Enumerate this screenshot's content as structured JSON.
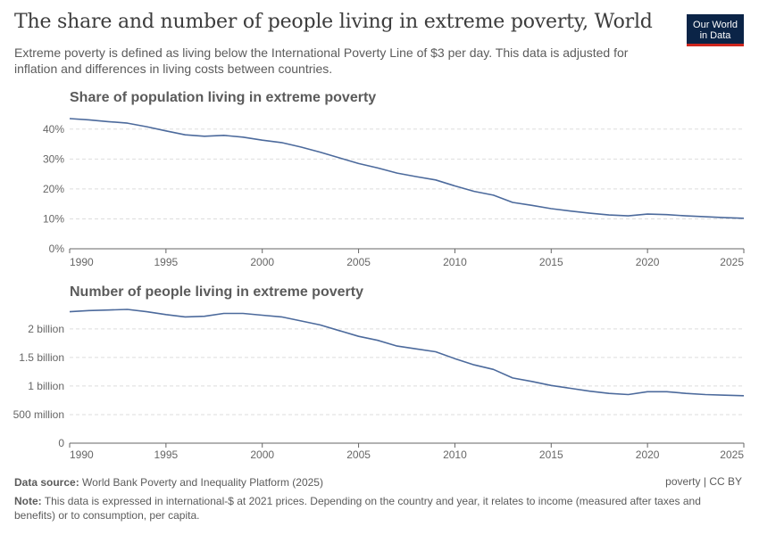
{
  "header": {
    "title": "The share and number of people living in extreme poverty, World",
    "subtitle": "Extreme poverty is defined as living below the International Poverty Line of $3 per day. This data is adjusted for inflation and differences in living costs between countries.",
    "logo_line1": "Our World",
    "logo_line2": "in Data"
  },
  "footer": {
    "source_label": "Data source:",
    "source_text": "World Bank Poverty and Inequality Platform (2025)",
    "note_label": "Note:",
    "note_text": "This data is expressed in international-$ at 2021 prices. Depending on the country and year, it relates to income (measured after taxes and benefits) or to consumption, per capita.",
    "topic_link": "poverty",
    "separator": "|",
    "license_link": "CC BY"
  },
  "colors": {
    "line": "#4c6a9c",
    "grid": "#dddddd",
    "axis": "#666666",
    "text": "#666666",
    "heading": "#5b5b5b"
  },
  "chart_data": [
    {
      "type": "line",
      "title": "Share of population living in extreme poverty",
      "ylim": [
        0,
        45
      ],
      "y_ticks": [
        0,
        10,
        20,
        30,
        40
      ],
      "y_tick_labels": [
        "0%",
        "10%",
        "20%",
        "30%",
        "40%"
      ],
      "x_ticks": [
        1990,
        1995,
        2000,
        2005,
        2010,
        2015,
        2020,
        2025
      ],
      "x_tick_labels": [
        "1990",
        "1995",
        "2000",
        "2005",
        "2010",
        "2015",
        "2020",
        "2025"
      ],
      "xlim": [
        1990,
        2025
      ],
      "grid": true,
      "x": [
        1990,
        1991,
        1992,
        1993,
        1994,
        1995,
        1996,
        1997,
        1998,
        1999,
        2000,
        2001,
        2002,
        2003,
        2004,
        2005,
        2006,
        2007,
        2008,
        2009,
        2010,
        2011,
        2012,
        2013,
        2014,
        2015,
        2016,
        2017,
        2018,
        2019,
        2020,
        2021,
        2022,
        2023,
        2024,
        2025
      ],
      "y": [
        43.5,
        43.1,
        42.5,
        42.0,
        40.8,
        39.4,
        38.1,
        37.6,
        37.9,
        37.3,
        36.3,
        35.5,
        34.0,
        32.3,
        30.4,
        28.5,
        27.0,
        25.3,
        24.1,
        23.0,
        21.0,
        19.2,
        17.9,
        15.5,
        14.5,
        13.4,
        12.6,
        11.9,
        11.3,
        11.0,
        11.6,
        11.4,
        11.0,
        10.7,
        10.4,
        10.2
      ]
    },
    {
      "type": "line",
      "title": "Number of people living in extreme poverty",
      "ylim": [
        0,
        2.45
      ],
      "y_ticks": [
        0,
        0.5,
        1,
        1.5,
        2
      ],
      "y_tick_labels": [
        "0",
        "500 million",
        "1 billion",
        "1.5 billion",
        "2 billion"
      ],
      "x_ticks": [
        1990,
        1995,
        2000,
        2005,
        2010,
        2015,
        2020,
        2025
      ],
      "x_tick_labels": [
        "1990",
        "1995",
        "2000",
        "2005",
        "2010",
        "2015",
        "2020",
        "2025"
      ],
      "xlim": [
        1990,
        2025
      ],
      "grid": true,
      "x": [
        1990,
        1991,
        1992,
        1993,
        1994,
        1995,
        1996,
        1997,
        1998,
        1999,
        2000,
        2001,
        2002,
        2003,
        2004,
        2005,
        2006,
        2007,
        2008,
        2009,
        2010,
        2011,
        2012,
        2013,
        2014,
        2015,
        2016,
        2017,
        2018,
        2019,
        2020,
        2021,
        2022,
        2023,
        2024,
        2025
      ],
      "y": [
        2.3,
        2.32,
        2.33,
        2.34,
        2.3,
        2.25,
        2.21,
        2.22,
        2.27,
        2.27,
        2.24,
        2.21,
        2.14,
        2.07,
        1.97,
        1.87,
        1.8,
        1.7,
        1.65,
        1.6,
        1.48,
        1.37,
        1.29,
        1.14,
        1.08,
        1.01,
        0.96,
        0.91,
        0.87,
        0.85,
        0.9,
        0.9,
        0.87,
        0.85,
        0.84,
        0.83
      ]
    }
  ]
}
